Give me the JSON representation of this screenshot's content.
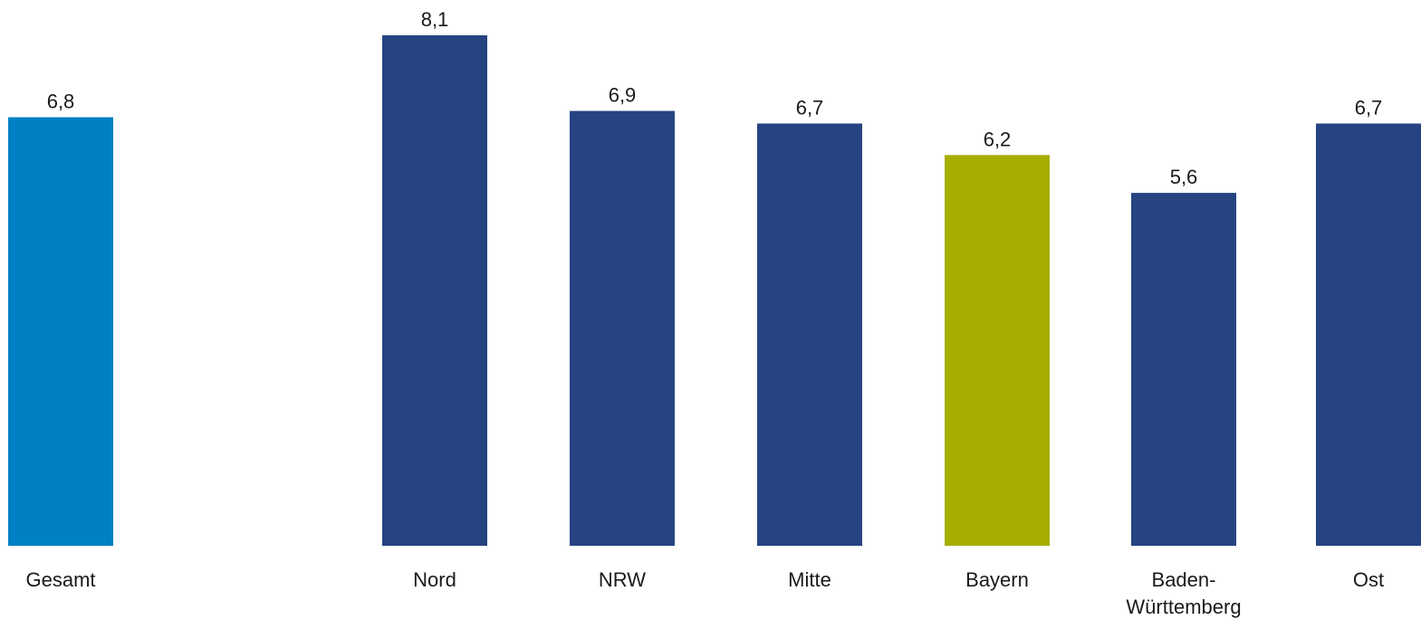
{
  "chart_data": {
    "type": "bar",
    "categories": [
      [
        "Gesamt"
      ],
      [
        "Nord"
      ],
      [
        "NRW"
      ],
      [
        "Mitte"
      ],
      [
        "Bayern"
      ],
      [
        "Baden-",
        "Württemberg"
      ],
      [
        "Ost"
      ]
    ],
    "values": [
      6.8,
      8.1,
      6.9,
      6.7,
      6.2,
      5.6,
      6.7
    ],
    "value_labels": [
      "6,8",
      "8,1",
      "6,9",
      "6,7",
      "6,2",
      "5,6",
      "6,7"
    ],
    "colors": [
      "#0080C4",
      "#264482",
      "#264482",
      "#264482",
      "#A6AE00",
      "#264482",
      "#264482"
    ],
    "title": "",
    "xlabel": "",
    "ylabel": "",
    "ylim": [
      0,
      8.1
    ],
    "grid": false,
    "legend": "none"
  }
}
